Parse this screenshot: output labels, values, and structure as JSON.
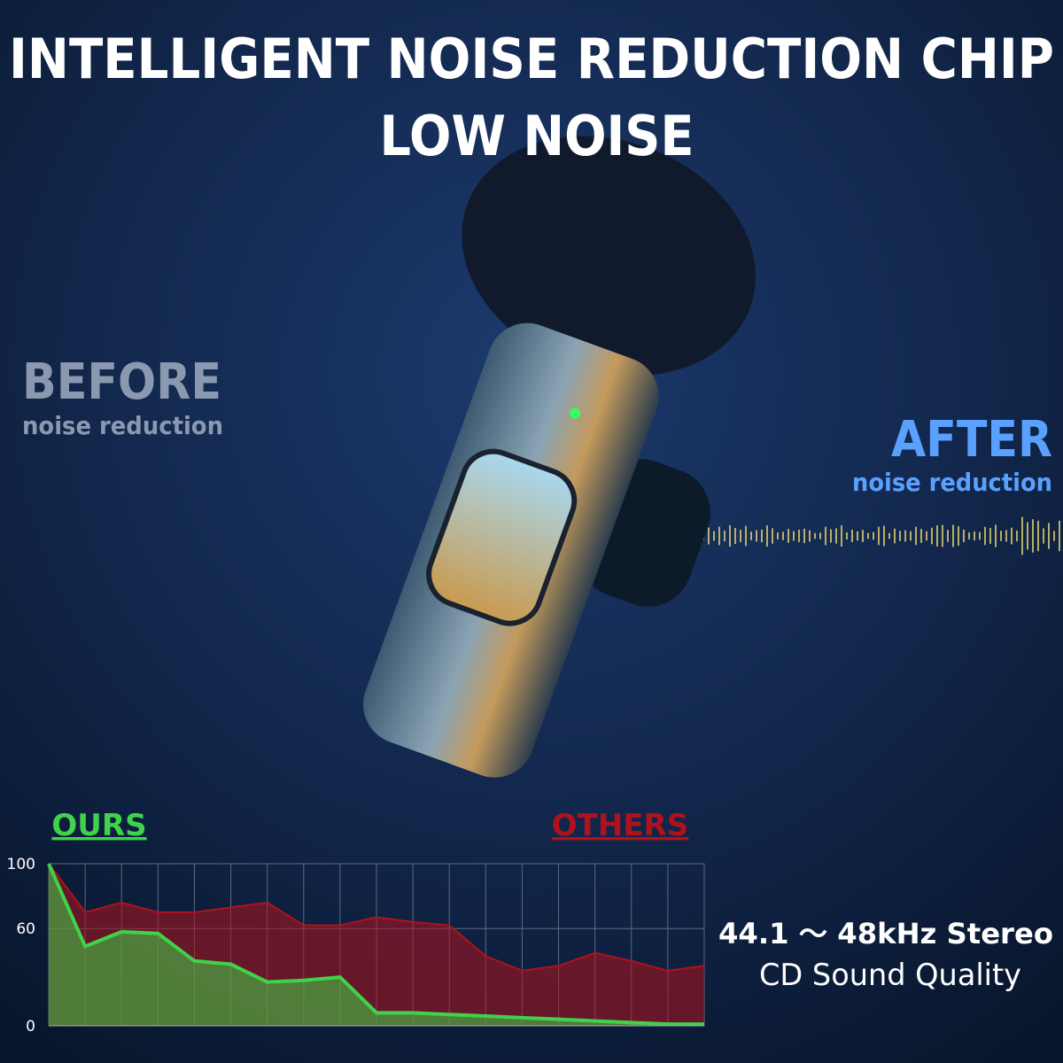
{
  "header": {
    "title": "INTELLIGENT NOISE REDUCTION CHIP",
    "subtitle": "LOW NOISE"
  },
  "before": {
    "title": "BEFORE",
    "caption": "noise reduction"
  },
  "after": {
    "title": "AFTER",
    "caption": "noise reduction"
  },
  "specs": {
    "line1": "44.1 ～ 48kHz Stereo",
    "line2": "CD Sound Quality"
  },
  "chart_data": {
    "type": "area",
    "x": [
      0,
      1,
      2,
      3,
      4,
      5,
      6,
      7,
      8,
      9,
      10,
      11,
      12,
      13,
      14,
      15,
      16,
      17,
      18
    ],
    "xlim": [
      0,
      18
    ],
    "ylim": [
      0,
      100
    ],
    "yticks": [
      0,
      60,
      100
    ],
    "grid": true,
    "series": [
      {
        "name": "OTHERS",
        "color": "#b0121b",
        "values": [
          100,
          70,
          76,
          70,
          70,
          73,
          76,
          62,
          62,
          67,
          64,
          62,
          43,
          34,
          37,
          45,
          40,
          34,
          37
        ]
      },
      {
        "name": "OURS",
        "color": "#3fd24a",
        "values": [
          100,
          49,
          58,
          57,
          40,
          38,
          27,
          28,
          30,
          8,
          8,
          7,
          6,
          5,
          4,
          3,
          2,
          1,
          1
        ]
      }
    ]
  }
}
